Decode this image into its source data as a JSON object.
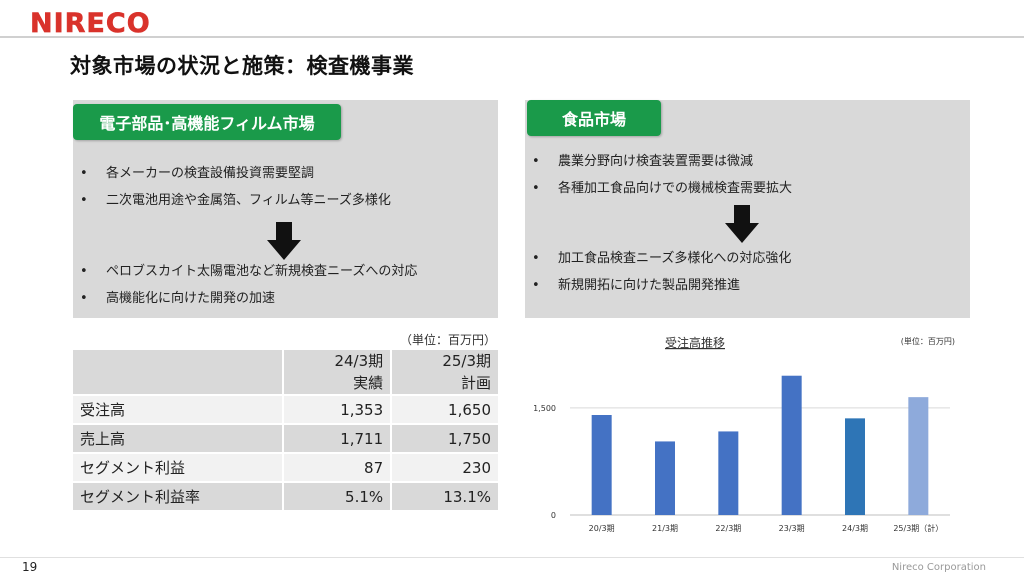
{
  "header": {
    "logo_text": "NIRECO",
    "title": "対象市場の状況と施策：検査機事業"
  },
  "colors": {
    "brand_red": "#d9322b",
    "tag_green": "#1a9a4a",
    "panel_gray": "#d9d9d9",
    "bar_blue": "#4472c4",
    "bar_blue_dark": "#2e75b6",
    "bar_plan": "#8eaadb"
  },
  "left_panel": {
    "tag": "電子部品･高機能フィルム市場",
    "bullets_before": [
      "各メーカーの検査設備投資需要堅調",
      "二次電池用途や金属箔、フィルム等ニーズ多様化"
    ],
    "arrow_icon": "down-arrow-icon",
    "bullets_after": [
      "ペロブスカイト太陽電池など新規検査ニーズへの対応",
      "高機能化に向けた開発の加速"
    ]
  },
  "right_panel": {
    "tag": "食品市場",
    "bullets_before": [
      "農業分野向け検査装置需要は微減",
      "各種加工食品向けでの機械検査需要拡大"
    ],
    "arrow_icon": "down-arrow-icon",
    "bullets_after": [
      "加工食品検査ニーズ多様化への対応強化",
      "新規開拓に向けた製品開発推進"
    ]
  },
  "table": {
    "unit": "（単位：百万円）",
    "headers": [
      {
        "line1": "24/3期",
        "line2": "実績"
      },
      {
        "line1": "25/3期",
        "line2": "計画"
      }
    ],
    "rows": [
      {
        "label": "受注高",
        "v1": "1,353",
        "v2": "1,650"
      },
      {
        "label": "売上高",
        "v1": "1,711",
        "v2": "1,750"
      },
      {
        "label": "セグメント利益",
        "v1": "87",
        "v2": "230"
      },
      {
        "label": "セグメント利益率",
        "v1": "5.1%",
        "v2": "13.1%"
      }
    ]
  },
  "chart_data": {
    "type": "bar",
    "title": "受注高推移",
    "unit": "(単位：百万円)",
    "categories": [
      "20/3期",
      "21/3期",
      "22/3期",
      "23/3期",
      "24/3期",
      "25/3期（計）"
    ],
    "values": [
      1400,
      1030,
      1170,
      1950,
      1353,
      1650
    ],
    "yticks": [
      "0",
      "1,500"
    ],
    "ylim": [
      0,
      2100
    ],
    "grid": true,
    "legend": "none"
  },
  "footer": {
    "page_number": "19",
    "company": "Nireco Corporation"
  }
}
